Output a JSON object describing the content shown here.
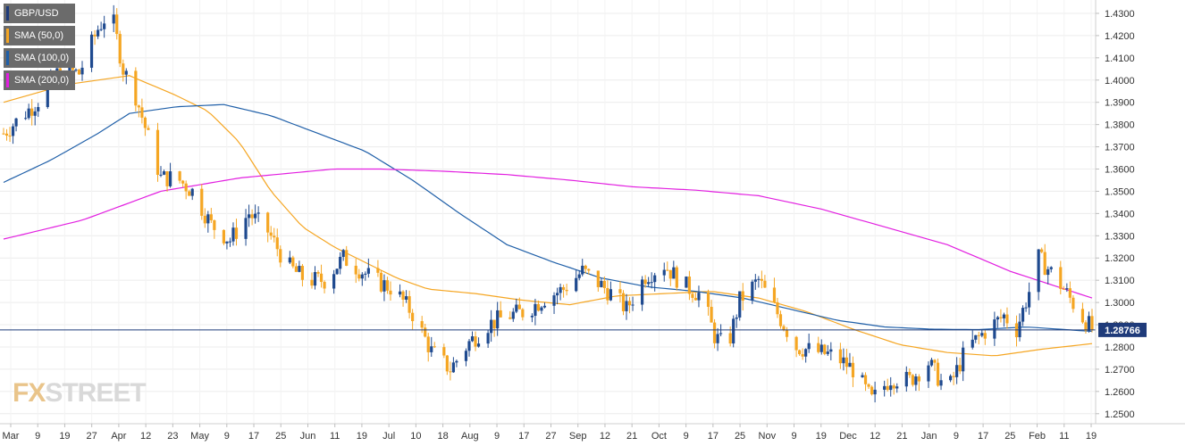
{
  "legend": [
    {
      "label": "GBP/USD",
      "color": "#1f3b7a"
    },
    {
      "label": "SMA (50,0)",
      "color": "#f5a623"
    },
    {
      "label": "SMA (100,0)",
      "color": "#1f5fa8"
    },
    {
      "label": "SMA (200,0)",
      "color": "#e21fe0"
    }
  ],
  "watermark": {
    "prefix": "FX",
    "rest": "STREET"
  },
  "chart_data": {
    "type": "candlestick",
    "symbol": "GBP/USD",
    "y_axis": {
      "ticks": [
        "1.4300",
        "1.4200",
        "1.4100",
        "1.4000",
        "1.3900",
        "1.3800",
        "1.3700",
        "1.3600",
        "1.3500",
        "1.3400",
        "1.3300",
        "1.3200",
        "1.3100",
        "1.3000",
        "1.2900",
        "1.2800",
        "1.2700",
        "1.2600",
        "1.2500"
      ],
      "ylim": [
        1.2455,
        1.436
      ]
    },
    "x_axis": {
      "labels": [
        "Mar",
        "9",
        "19",
        "27",
        "Apr",
        "12",
        "23",
        "May",
        "9",
        "17",
        "25",
        "Jun",
        "11",
        "19",
        "Jul",
        "10",
        "18",
        "Aug",
        "9",
        "17",
        "27",
        "Sep",
        "12",
        "21",
        "Oct",
        "9",
        "17",
        "25",
        "Nov",
        "9",
        "19",
        "Dec",
        "12",
        "21",
        "Jan",
        "9",
        "17",
        "25",
        "Feb",
        "11",
        "19"
      ]
    },
    "last_price": "1.28766",
    "last_price_value": 1.28766,
    "anchors": [
      [
        0,
        1.376
      ],
      [
        6,
        1.384
      ],
      [
        12,
        1.392
      ],
      [
        18,
        1.405
      ],
      [
        24,
        1.403
      ],
      [
        30,
        1.423
      ],
      [
        34,
        1.432
      ],
      [
        38,
        1.405
      ],
      [
        42,
        1.393
      ],
      [
        46,
        1.374
      ],
      [
        50,
        1.356
      ],
      [
        55,
        1.356
      ],
      [
        60,
        1.35
      ],
      [
        66,
        1.335
      ],
      [
        72,
        1.328
      ],
      [
        78,
        1.34
      ],
      [
        84,
        1.332
      ],
      [
        90,
        1.317
      ],
      [
        96,
        1.31
      ],
      [
        102,
        1.31
      ],
      [
        108,
        1.32
      ],
      [
        112,
        1.316
      ],
      [
        118,
        1.31
      ],
      [
        124,
        1.306
      ],
      [
        130,
        1.295
      ],
      [
        136,
        1.278
      ],
      [
        142,
        1.27
      ],
      [
        148,
        1.282
      ],
      [
        154,
        1.29
      ],
      [
        160,
        1.294
      ],
      [
        166,
        1.296
      ],
      [
        172,
        1.302
      ],
      [
        178,
        1.306
      ],
      [
        184,
        1.314
      ],
      [
        188,
        1.31
      ],
      [
        194,
        1.303
      ],
      [
        198,
        1.297
      ],
      [
        204,
        1.312
      ],
      [
        210,
        1.317
      ],
      [
        216,
        1.308
      ],
      [
        222,
        1.303
      ],
      [
        226,
        1.285
      ],
      [
        230,
        1.279
      ],
      [
        234,
        1.301
      ],
      [
        240,
        1.31
      ],
      [
        246,
        1.295
      ],
      [
        252,
        1.28
      ],
      [
        258,
        1.278
      ],
      [
        264,
        1.276
      ],
      [
        270,
        1.27
      ],
      [
        276,
        1.256
      ],
      [
        282,
        1.266
      ],
      [
        288,
        1.265
      ],
      [
        294,
        1.273
      ],
      [
        300,
        1.26
      ],
      [
        306,
        1.279
      ],
      [
        312,
        1.287
      ],
      [
        318,
        1.294
      ],
      [
        322,
        1.288
      ],
      [
        326,
        1.305
      ],
      [
        329,
        1.32
      ],
      [
        334,
        1.312
      ],
      [
        338,
        1.304
      ],
      [
        342,
        1.295
      ],
      [
        346,
        1.288
      ]
    ],
    "series": [
      {
        "name": "SMA (50,0)",
        "color": "#f5a623",
        "points": [
          [
            0,
            1.39
          ],
          [
            20,
            1.398
          ],
          [
            40,
            1.402
          ],
          [
            55,
            1.393
          ],
          [
            65,
            1.386
          ],
          [
            75,
            1.372
          ],
          [
            85,
            1.35
          ],
          [
            95,
            1.334
          ],
          [
            105,
            1.325
          ],
          [
            115,
            1.318
          ],
          [
            125,
            1.311
          ],
          [
            135,
            1.306
          ],
          [
            150,
            1.304
          ],
          [
            165,
            1.301
          ],
          [
            180,
            1.299
          ],
          [
            195,
            1.303
          ],
          [
            210,
            1.304
          ],
          [
            225,
            1.305
          ],
          [
            240,
            1.302
          ],
          [
            255,
            1.296
          ],
          [
            270,
            1.288
          ],
          [
            285,
            1.281
          ],
          [
            300,
            1.2775
          ],
          [
            315,
            1.276
          ],
          [
            330,
            1.279
          ],
          [
            346,
            1.2815
          ]
        ]
      },
      {
        "name": "SMA (100,0)",
        "color": "#1f5fa8",
        "points": [
          [
            0,
            1.354
          ],
          [
            15,
            1.364
          ],
          [
            30,
            1.376
          ],
          [
            40,
            1.385
          ],
          [
            55,
            1.388
          ],
          [
            70,
            1.389
          ],
          [
            85,
            1.384
          ],
          [
            100,
            1.376
          ],
          [
            115,
            1.368
          ],
          [
            130,
            1.355
          ],
          [
            145,
            1.34
          ],
          [
            160,
            1.326
          ],
          [
            175,
            1.318
          ],
          [
            190,
            1.311
          ],
          [
            205,
            1.307
          ],
          [
            220,
            1.305
          ],
          [
            235,
            1.302
          ],
          [
            250,
            1.297
          ],
          [
            265,
            1.292
          ],
          [
            280,
            1.289
          ],
          [
            295,
            1.288
          ],
          [
            310,
            1.2878
          ],
          [
            325,
            1.289
          ],
          [
            346,
            1.287
          ]
        ]
      },
      {
        "name": "SMA (200,0)",
        "color": "#e21fe0",
        "points": [
          [
            0,
            1.3285
          ],
          [
            25,
            1.337
          ],
          [
            50,
            1.35
          ],
          [
            75,
            1.356
          ],
          [
            90,
            1.358
          ],
          [
            105,
            1.36
          ],
          [
            120,
            1.36
          ],
          [
            140,
            1.359
          ],
          [
            160,
            1.3575
          ],
          [
            180,
            1.355
          ],
          [
            200,
            1.352
          ],
          [
            220,
            1.3505
          ],
          [
            240,
            1.348
          ],
          [
            260,
            1.342
          ],
          [
            280,
            1.334
          ],
          [
            300,
            1.326
          ],
          [
            320,
            1.314
          ],
          [
            346,
            1.302
          ]
        ]
      }
    ]
  }
}
